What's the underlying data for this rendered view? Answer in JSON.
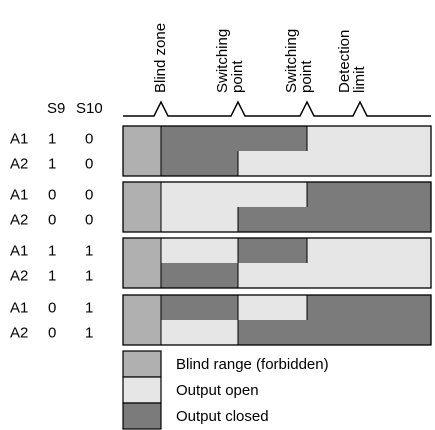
{
  "columns": {
    "s9": "S9",
    "s10": "S10"
  },
  "header": {
    "markers": [
      {
        "label": "Blind zone",
        "lines": [
          "Blind zone"
        ]
      },
      {
        "label": "Switching point",
        "lines": [
          "Switching",
          "point"
        ]
      },
      {
        "label": "Switching point",
        "lines": [
          "Switching",
          "point"
        ]
      },
      {
        "label": "Detection limit",
        "lines": [
          "Detection",
          "limit"
        ]
      }
    ]
  },
  "groups": [
    {
      "rows": [
        {
          "output": "A1",
          "s9": "1",
          "s10": "0",
          "segments": [
            "blind",
            "closed",
            "closed",
            "open"
          ]
        },
        {
          "output": "A2",
          "s9": "1",
          "s10": "0",
          "segments": [
            "blind",
            "closed",
            "open",
            "open"
          ]
        }
      ]
    },
    {
      "rows": [
        {
          "output": "A1",
          "s9": "0",
          "s10": "0",
          "segments": [
            "blind",
            "open",
            "open",
            "closed"
          ]
        },
        {
          "output": "A2",
          "s9": "0",
          "s10": "0",
          "segments": [
            "blind",
            "open",
            "closed",
            "closed"
          ]
        }
      ]
    },
    {
      "rows": [
        {
          "output": "A1",
          "s9": "1",
          "s10": "1",
          "segments": [
            "blind",
            "open",
            "closed",
            "open"
          ]
        },
        {
          "output": "A2",
          "s9": "1",
          "s10": "1",
          "segments": [
            "blind",
            "closed",
            "open",
            "open"
          ]
        }
      ]
    },
    {
      "rows": [
        {
          "output": "A1",
          "s9": "0",
          "s10": "1",
          "segments": [
            "blind",
            "closed",
            "open",
            "closed"
          ]
        },
        {
          "output": "A2",
          "s9": "0",
          "s10": "1",
          "segments": [
            "blind",
            "open",
            "closed",
            "closed"
          ]
        }
      ]
    }
  ],
  "legend": [
    {
      "state": "blind",
      "label": "Blind range (forbidden)"
    },
    {
      "state": "open",
      "label": "Output open"
    },
    {
      "state": "closed",
      "label": "Output closed"
    }
  ],
  "colors": {
    "blind": "#b0b0b0",
    "open": "#e6e6e6",
    "closed": "#7b7b7b",
    "line": "#000000"
  }
}
